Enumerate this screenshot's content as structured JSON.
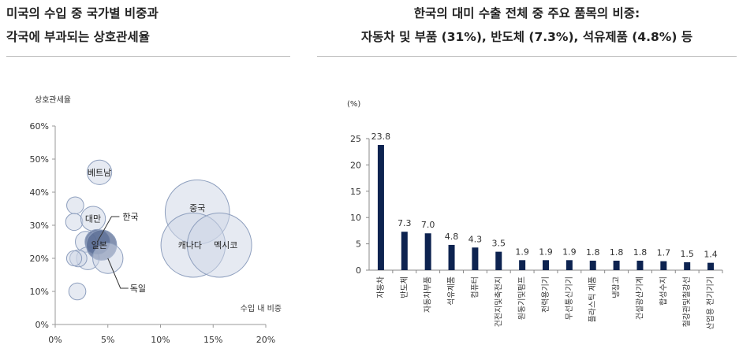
{
  "left_panel": {
    "title_line1": "미국의 수입 중 국가별 비중과",
    "title_line2": "각국에 부과되는 상호관세율"
  },
  "right_panel": {
    "title_line1": "한국의 대미 수출 전체 중 주요 품목의 비중:",
    "title_line2": "자동차 및 부품 (31%), 반도체 (7.3%), 석유제품 (4.8%) 등"
  },
  "colors": {
    "bar": "#0d2350",
    "bubble_fill": "#cdd6e6",
    "bubble_stroke": "#8e9fbe",
    "bubble_highlight": "#5b6e96"
  },
  "chart_data": [
    {
      "type": "scatter",
      "xlabel": "수입 내 비중",
      "ylabel": "상호관세율",
      "xlim": [
        0,
        20
      ],
      "ylim": [
        0,
        60
      ],
      "x_ticks": [
        "0%",
        "5%",
        "10%",
        "15%",
        "20%"
      ],
      "y_ticks": [
        "0%",
        "10%",
        "20%",
        "30%",
        "40%",
        "50%",
        "60%"
      ],
      "points": [
        {
          "label": "베트남",
          "x": 4.2,
          "y": 46,
          "size": 1.3
        },
        {
          "label": "대만",
          "x": 3.6,
          "y": 32,
          "size": 1.3
        },
        {
          "label": "한국",
          "x": 4.0,
          "y": 25,
          "size": 1.3,
          "callout": true
        },
        {
          "label": "일본",
          "x": 4.4,
          "y": 24,
          "size": 1.6
        },
        {
          "label": "독일",
          "x": 5.0,
          "y": 20,
          "size": 1.6,
          "callout": true
        },
        {
          "label": "중국",
          "x": 13.5,
          "y": 34,
          "size": 3.4
        },
        {
          "label": "캐나다",
          "x": 13.1,
          "y": 24,
          "size": 3.4
        },
        {
          "label": "멕시코",
          "x": 15.6,
          "y": 24,
          "size": 3.4
        },
        {
          "label": "",
          "x": 1.9,
          "y": 36,
          "size": 0.9
        },
        {
          "label": "",
          "x": 1.8,
          "y": 31,
          "size": 0.9
        },
        {
          "label": "",
          "x": 2.9,
          "y": 25,
          "size": 1.1
        },
        {
          "label": "",
          "x": 3.1,
          "y": 20,
          "size": 1.2
        },
        {
          "label": "",
          "x": 2.2,
          "y": 20,
          "size": 0.9
        },
        {
          "label": "",
          "x": 1.8,
          "y": 20,
          "size": 0.8
        },
        {
          "label": "",
          "x": 2.1,
          "y": 10,
          "size": 0.9
        }
      ]
    },
    {
      "type": "bar",
      "ylabel": "(%)",
      "ylim": [
        0,
        25
      ],
      "y_ticks": [
        "0",
        "5",
        "10",
        "15",
        "20",
        "25"
      ],
      "categories": [
        "자동차",
        "반도체",
        "자동차부품",
        "석유제품",
        "컴퓨터",
        "건전지및축전지",
        "원동기및펌프",
        "전력용기기",
        "무선통신기기",
        "플라스틱 제품",
        "냉장고",
        "건설광산기계",
        "합성수지",
        "철강관및철강선",
        "산업용 전기기기"
      ],
      "values": [
        23.8,
        7.3,
        7.0,
        4.8,
        4.3,
        3.5,
        1.9,
        1.9,
        1.9,
        1.8,
        1.8,
        1.8,
        1.7,
        1.5,
        1.4
      ],
      "value_labels": [
        "23.8",
        "7.3",
        "7.0",
        "4.8",
        "4.3",
        "3.5",
        "1.9",
        "1.9",
        "1.9",
        "1.8",
        "1.8",
        "1.8",
        "1.7",
        "1.5",
        "1.4"
      ]
    }
  ]
}
